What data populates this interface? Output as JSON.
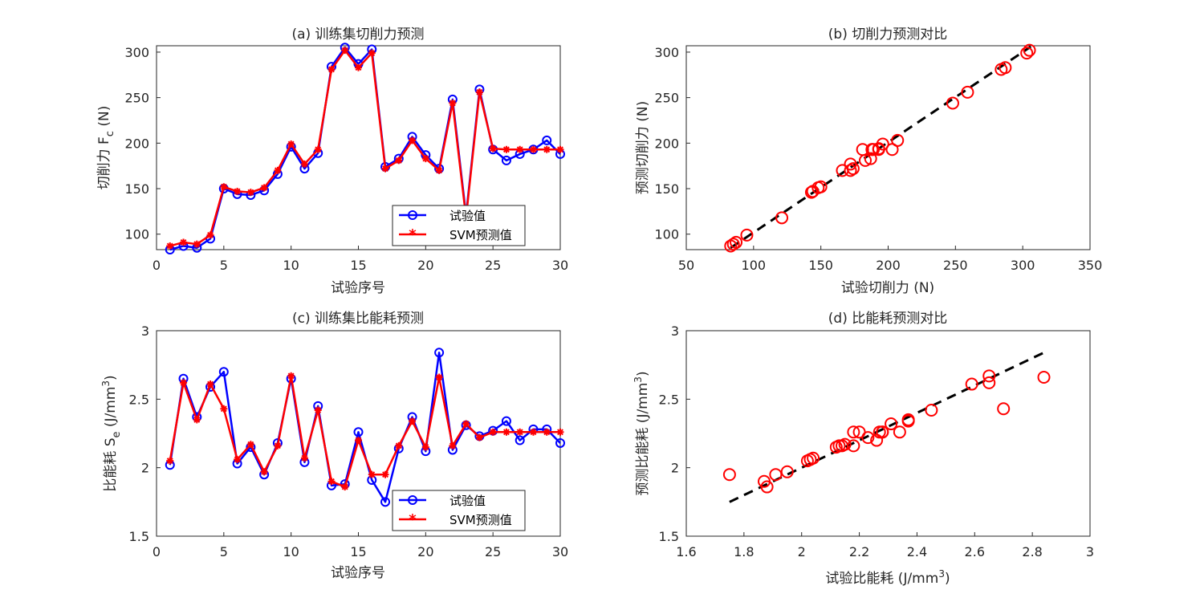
{
  "colors": {
    "measured": "#0000ff",
    "predicted": "#ff0000",
    "fit_line": "#000000"
  },
  "chart_data": [
    {
      "id": "a",
      "type": "line",
      "title": "(a) 训练集切削力预测",
      "xlabel": "试验序号",
      "ylabel_main": "切削力 F",
      "ylabel_sub": "c",
      "ylabel_tail": " (N)",
      "xlim": [
        0,
        30
      ],
      "ylim": [
        83,
        307
      ],
      "xticks": [
        0,
        5,
        10,
        15,
        20,
        25,
        30
      ],
      "yticks": [
        100,
        150,
        200,
        250,
        300
      ],
      "grid": true,
      "legend_position": "bottom-right",
      "x": [
        1,
        2,
        3,
        4,
        5,
        6,
        7,
        8,
        9,
        10,
        11,
        12,
        13,
        14,
        15,
        16,
        17,
        18,
        19,
        20,
        21,
        22,
        23,
        24,
        25,
        26,
        27,
        28,
        29,
        30
      ],
      "series": [
        {
          "name": "试验值",
          "marker": "circle",
          "values": [
            83,
            87,
            85,
            95,
            150,
            144,
            143,
            148,
            166,
            196,
            172,
            189,
            284,
            305,
            287,
            303,
            174,
            183,
            207,
            187,
            172,
            248,
            121,
            259,
            193,
            181,
            188,
            193,
            203,
            188
          ]
        },
        {
          "name": "SVM预测值",
          "marker": "asterisk",
          "values": [
            87,
            91,
            89,
            99,
            152,
            147,
            146,
            151,
            170,
            199,
            177,
            193,
            281,
            302,
            283,
            299,
            172,
            181,
            203,
            183,
            170,
            244,
            118,
            256,
            194,
            193,
            193,
            193,
            193,
            193
          ]
        }
      ]
    },
    {
      "id": "b",
      "type": "scatter",
      "title": "(b) 切削力预测对比",
      "xlabel": "试验切削力 (N)",
      "ylabel": "预测切削力 (N)",
      "xlim": [
        50,
        350
      ],
      "ylim": [
        83,
        307
      ],
      "xticks": [
        50,
        100,
        150,
        200,
        250,
        300,
        350
      ],
      "yticks": [
        100,
        150,
        200,
        250,
        300
      ],
      "grid": true,
      "fit_line": {
        "x": [
          83,
          306
        ],
        "y": [
          85,
          306
        ]
      },
      "points": {
        "x": [
          83,
          87,
          85,
          95,
          150,
          144,
          143,
          148,
          166,
          196,
          172,
          189,
          284,
          305,
          287,
          303,
          174,
          183,
          207,
          187,
          172,
          248,
          121,
          259,
          193,
          181,
          188,
          193,
          203,
          188
        ],
        "y": [
          87,
          91,
          89,
          99,
          152,
          147,
          146,
          151,
          170,
          199,
          177,
          193,
          281,
          302,
          283,
          299,
          172,
          181,
          203,
          183,
          170,
          244,
          118,
          256,
          194,
          193,
          193,
          193,
          193,
          193
        ]
      }
    },
    {
      "id": "c",
      "type": "line",
      "title": "(c) 训练集比能耗预测",
      "xlabel": "试验序号",
      "ylabel_main": "比能耗 S",
      "ylabel_sub": "e",
      "ylabel_tail": " (J/mm",
      "ylabel_sup": "3",
      "ylabel_close": ")",
      "xlim": [
        0,
        30
      ],
      "ylim": [
        1.5,
        3.0
      ],
      "xticks": [
        0,
        5,
        10,
        15,
        20,
        25,
        30
      ],
      "yticks": [
        1.5,
        2,
        2.5,
        3
      ],
      "grid": true,
      "legend_position": "bottom-right",
      "x": [
        1,
        2,
        3,
        4,
        5,
        6,
        7,
        8,
        9,
        10,
        11,
        12,
        13,
        14,
        15,
        16,
        17,
        18,
        19,
        20,
        21,
        22,
        23,
        24,
        25,
        26,
        27,
        28,
        29,
        30
      ],
      "series": [
        {
          "name": "试验值",
          "marker": "circle",
          "values": [
            2.02,
            2.65,
            2.37,
            2.59,
            2.7,
            2.03,
            2.15,
            1.95,
            2.18,
            2.65,
            2.04,
            2.45,
            1.87,
            1.88,
            2.26,
            1.91,
            1.75,
            2.14,
            2.37,
            2.12,
            2.84,
            2.13,
            2.31,
            2.23,
            2.27,
            2.34,
            2.2,
            2.28,
            2.28,
            2.18
          ]
        },
        {
          "name": "SVM预测值",
          "marker": "asterisk",
          "values": [
            2.05,
            2.62,
            2.35,
            2.61,
            2.43,
            2.06,
            2.17,
            1.97,
            2.16,
            2.67,
            2.07,
            2.42,
            1.9,
            1.86,
            2.2,
            1.95,
            1.95,
            2.16,
            2.34,
            2.15,
            2.66,
            2.16,
            2.32,
            2.22,
            2.26,
            2.26,
            2.26,
            2.26,
            2.26,
            2.26
          ]
        }
      ]
    },
    {
      "id": "d",
      "type": "scatter",
      "title": "(d) 比能耗预测对比",
      "xlabel_main": "试验比能耗 (J/mm",
      "xlabel_sup": "3",
      "xlabel_close": ")",
      "ylabel_main": "预测比能耗 (J/mm",
      "ylabel_sup": "3",
      "ylabel_close": ")",
      "xlim": [
        1.6,
        3.0
      ],
      "ylim": [
        1.5,
        3.0
      ],
      "xticks": [
        1.6,
        1.8,
        2.0,
        2.2,
        2.4,
        2.6,
        2.8,
        3.0
      ],
      "xtick_labels": [
        "1.6",
        "1.8",
        "2",
        "2.2",
        "2.4",
        "2.6",
        "2.8",
        "3"
      ],
      "yticks": [
        1.5,
        2,
        2.5,
        3
      ],
      "grid": true,
      "fit_line": {
        "x": [
          1.75,
          2.84
        ],
        "y": [
          1.75,
          2.84
        ]
      },
      "points": {
        "x": [
          2.02,
          2.65,
          2.37,
          2.59,
          2.7,
          2.03,
          2.15,
          1.95,
          2.18,
          2.65,
          2.04,
          2.45,
          1.87,
          1.88,
          2.26,
          1.91,
          1.75,
          2.14,
          2.37,
          2.12,
          2.84,
          2.13,
          2.31,
          2.23,
          2.27,
          2.34,
          2.2,
          2.28,
          2.28,
          2.18
        ],
        "y": [
          2.05,
          2.62,
          2.35,
          2.61,
          2.43,
          2.06,
          2.17,
          1.97,
          2.16,
          2.67,
          2.07,
          2.42,
          1.9,
          1.86,
          2.2,
          1.95,
          1.95,
          2.16,
          2.34,
          2.15,
          2.66,
          2.16,
          2.32,
          2.22,
          2.26,
          2.26,
          2.26,
          2.26,
          2.26,
          2.26
        ]
      }
    }
  ]
}
